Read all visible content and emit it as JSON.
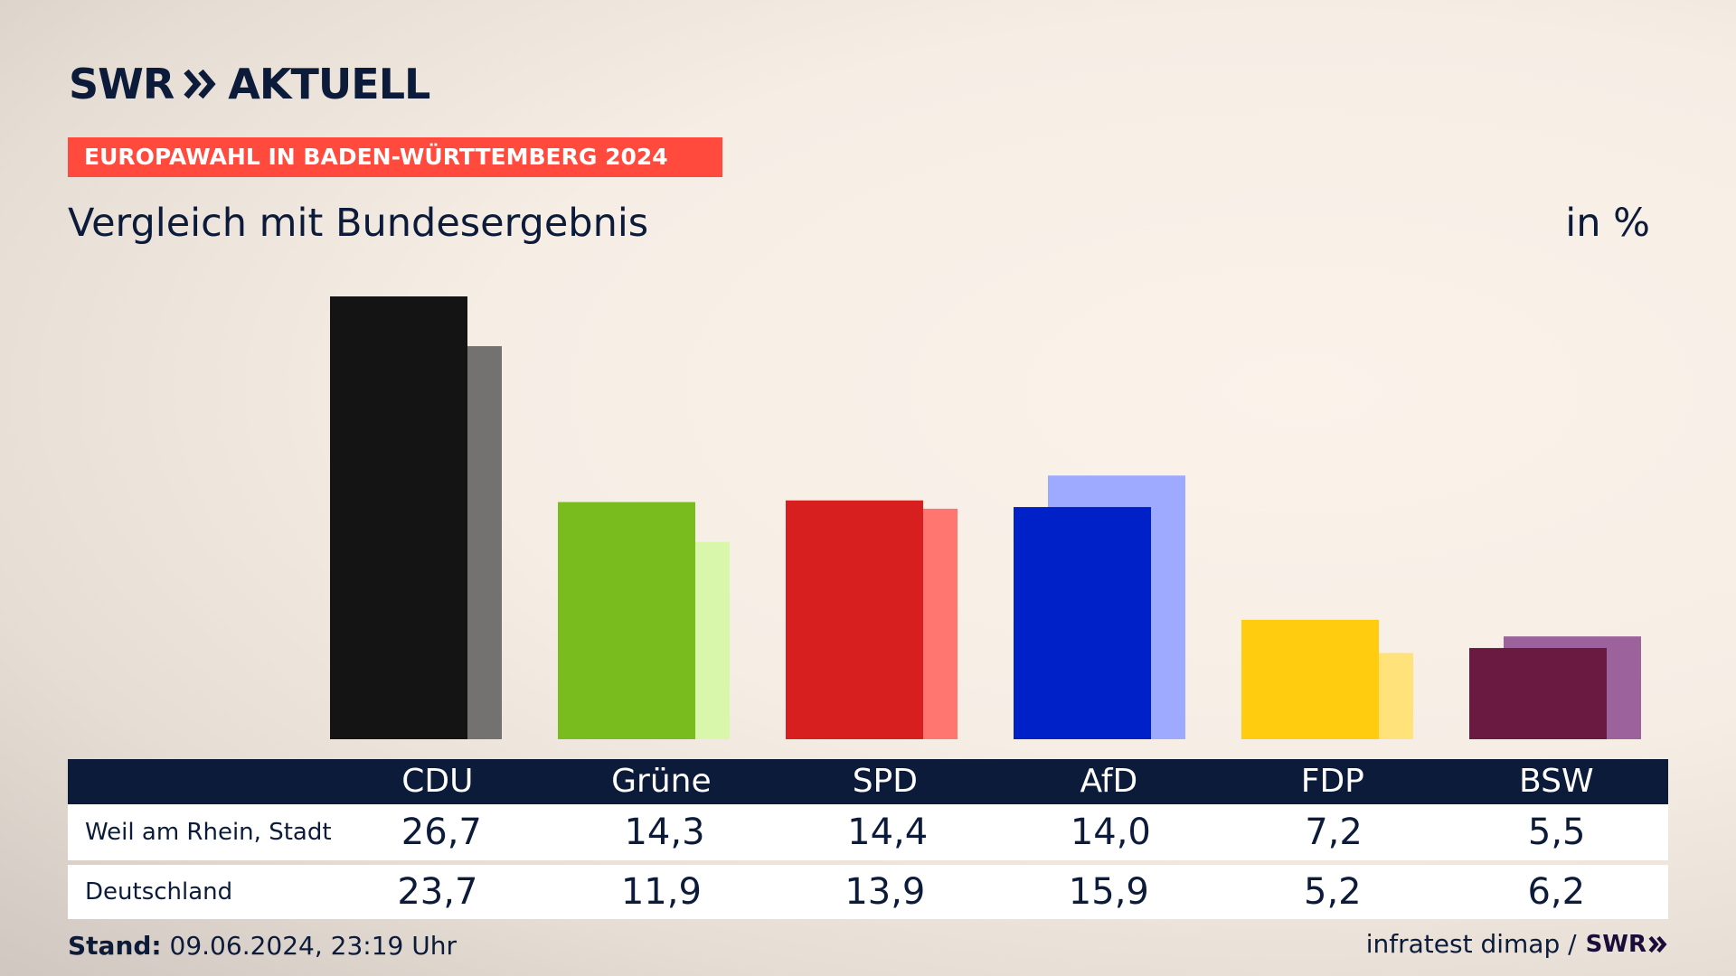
{
  "header": {
    "logo_text": "SWR",
    "logo_suffix": "AKTUELL",
    "kicker": "EUROPAWAHL IN BADEN-WÜRTTEMBERG 2024"
  },
  "footer": {
    "stand_label": "Stand:",
    "stand_value": "09.06.2024, 23:19 Uhr",
    "source": "infratest dimap /",
    "source_logo": "SWR"
  },
  "chart_data": {
    "type": "bar",
    "title": "Vergleich mit Bundesergebnis",
    "unit": "in %",
    "categories": [
      "CDU",
      "Grüne",
      "SPD",
      "AfD",
      "FDP",
      "BSW"
    ],
    "series": [
      {
        "name": "Weil am Rhein, Stadt",
        "values": [
          26.7,
          14.3,
          14.4,
          14.0,
          7.2,
          5.5
        ],
        "labels": [
          "26,7",
          "14,3",
          "14,4",
          "14,0",
          "7,2",
          "5,5"
        ],
        "colors": [
          "#141414",
          "#78bc1e",
          "#d81f20",
          "#0020c8",
          "#ffcc0f",
          "#6a1a40"
        ]
      },
      {
        "name": "Deutschland",
        "values": [
          23.7,
          11.9,
          13.9,
          15.9,
          5.2,
          6.2
        ],
        "labels": [
          "23,7",
          "11,9",
          "13,9",
          "15,9",
          "5,2",
          "6,2"
        ],
        "colors": [
          "#747270",
          "#d8f7aa",
          "#ff7670",
          "#9eaaff",
          "#ffe27a",
          "#9c629c"
        ]
      }
    ],
    "ylim": [
      0,
      26.7
    ],
    "legend": "table-bottom"
  }
}
